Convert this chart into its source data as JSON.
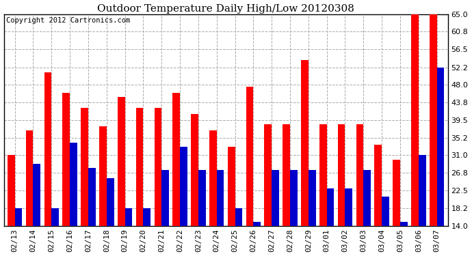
{
  "title": "Outdoor Temperature Daily High/Low 20120308",
  "copyright": "Copyright 2012 Cartronics.com",
  "dates": [
    "02/13",
    "02/14",
    "02/15",
    "02/16",
    "02/17",
    "02/18",
    "02/19",
    "02/20",
    "02/21",
    "02/22",
    "02/23",
    "02/24",
    "02/25",
    "02/26",
    "02/27",
    "02/28",
    "02/29",
    "03/01",
    "03/02",
    "03/03",
    "03/04",
    "03/05",
    "03/06",
    "03/07"
  ],
  "highs": [
    31.0,
    37.0,
    51.0,
    46.0,
    42.5,
    38.0,
    45.0,
    42.5,
    42.5,
    46.0,
    41.0,
    37.0,
    33.0,
    47.5,
    38.5,
    38.5,
    54.0,
    38.5,
    38.5,
    38.5,
    33.5,
    30.0,
    65.0,
    65.0
  ],
  "lows": [
    18.2,
    29.0,
    18.2,
    34.0,
    28.0,
    25.5,
    18.2,
    18.2,
    27.5,
    33.0,
    27.5,
    27.5,
    18.2,
    15.0,
    27.5,
    27.5,
    27.5,
    23.0,
    23.0,
    27.5,
    21.0,
    15.0,
    31.0,
    52.2
  ],
  "ylim": [
    14.0,
    65.0
  ],
  "yticks": [
    14.0,
    18.2,
    22.5,
    26.8,
    31.0,
    35.2,
    39.5,
    43.8,
    48.0,
    52.2,
    56.5,
    60.8,
    65.0
  ],
  "high_color": "#ff0000",
  "low_color": "#0000cc",
  "bg_color": "#ffffff",
  "grid_color": "#aaaaaa",
  "title_fontsize": 11,
  "tick_fontsize": 8,
  "copyright_fontsize": 7.5
}
